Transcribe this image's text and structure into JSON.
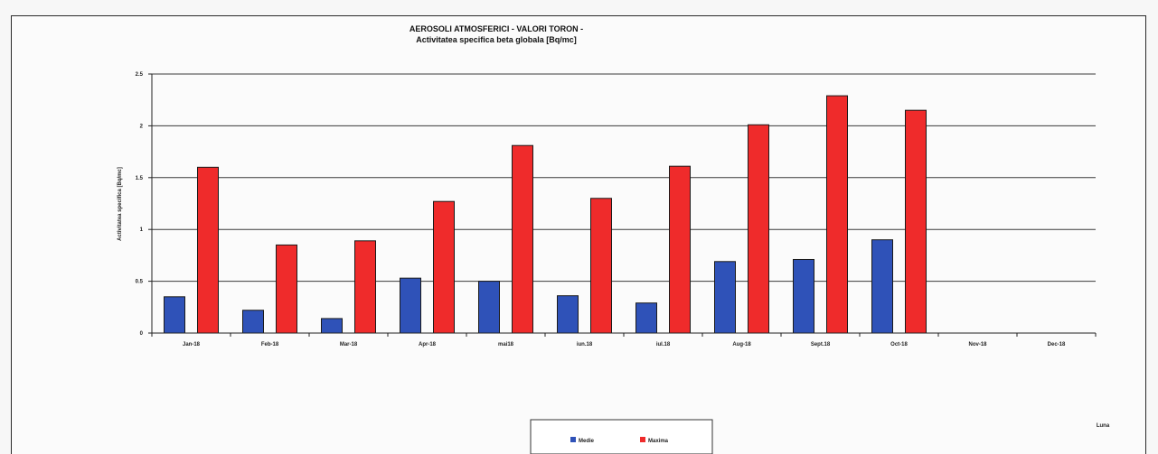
{
  "chart_data": {
    "type": "bar",
    "title": "AEROSOLI ATMOSFERICI - VALORI TORON -",
    "subtitle": "Activitatea specifica beta globala [Bq/mc]",
    "ylabel": "Activitatea specifica [Bq/mc]",
    "xlabel": "Luna",
    "ylim": [
      0,
      2.5
    ],
    "yticks": [
      "0",
      "0.5",
      "1",
      "1.5",
      "2",
      "2.5"
    ],
    "grid": true,
    "legend_position": "bottom",
    "categories": [
      "Jan-18",
      "Feb-18",
      "Mar-18",
      "Apr-18",
      "mai18",
      "iun.18",
      "iul.18",
      "Aug-18",
      "Sept.18",
      "Oct-18",
      "Nov-18",
      "Dec-18"
    ],
    "series": [
      {
        "name": "Medie",
        "color": "#2f52b8",
        "values": [
          0.35,
          0.22,
          0.14,
          0.53,
          0.5,
          0.36,
          0.29,
          0.69,
          0.71,
          0.9,
          null,
          null
        ]
      },
      {
        "name": "Maxima",
        "color": "#ef2b2b",
        "values": [
          1.6,
          0.85,
          0.89,
          1.27,
          1.81,
          1.3,
          1.61,
          2.01,
          2.29,
          2.15,
          null,
          null
        ]
      }
    ]
  }
}
